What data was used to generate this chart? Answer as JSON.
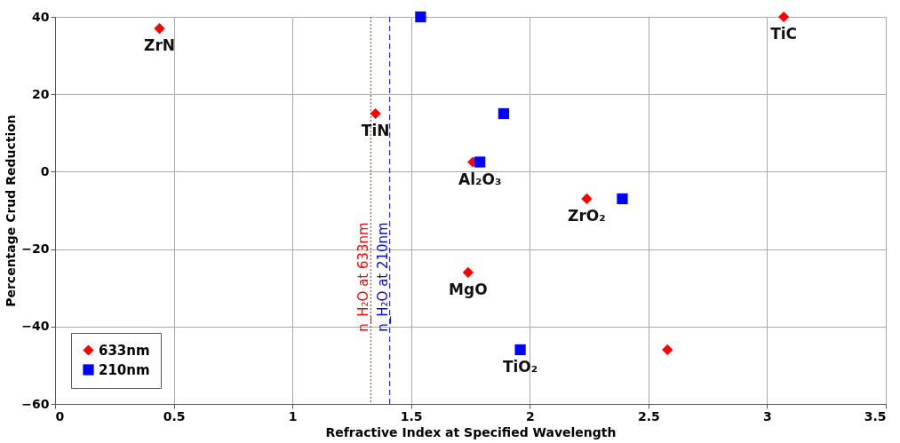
{
  "chart_data": {
    "type": "scatter",
    "xlabel": "Refractive Index at Specified Wavelength",
    "ylabel": "Percentage Crud Reduction",
    "xlim": [
      0,
      3.5
    ],
    "xticks": [
      0,
      0.5,
      1,
      1.5,
      2,
      2.5,
      3,
      3.5
    ],
    "ylim": [
      -60,
      40
    ],
    "yticks": [
      -60,
      -40,
      -20,
      0,
      20,
      40
    ],
    "grid": true,
    "legend": "bottom left",
    "series": [
      {
        "name": "633nm",
        "color": "#ff0000",
        "marker": "diamond",
        "x": [
          0.44,
          1.35,
          1.76,
          1.74,
          2.24,
          2.58,
          3.07
        ],
        "values": [
          37,
          15,
          2.5,
          -26,
          -7,
          -46,
          40
        ]
      },
      {
        "name": "210nm",
        "color": "#0000ff",
        "marker": "square",
        "x": [
          1.54,
          1.89,
          1.79,
          2.39,
          1.96
        ],
        "values": [
          40,
          15,
          2.5,
          -7,
          -46
        ]
      }
    ],
    "ref_lines": [
      {
        "axis": "x",
        "value": 1.33,
        "label": "n_H₂O at 633nm",
        "color": "#ff0000",
        "line_style": "dotted"
      },
      {
        "axis": "x",
        "value": 1.41,
        "label": "n_H₂O at 210nm",
        "color": "#0000ff",
        "line_style": "dashed"
      }
    ],
    "annotations": [
      {
        "text": "ZrN",
        "x": 0.44,
        "y": 37
      },
      {
        "text": "TiC",
        "x": 3.07,
        "y": 40
      },
      {
        "text": "TiN",
        "x": 1.35,
        "y": 15
      },
      {
        "text": "Al₂O₃",
        "x": 1.79,
        "y": 2.5
      },
      {
        "text": "ZrO₂",
        "x": 2.24,
        "y": -7
      },
      {
        "text": "MgO",
        "x": 1.74,
        "y": -26
      },
      {
        "text": "TiO₂",
        "x": 1.96,
        "y": -46
      }
    ]
  }
}
